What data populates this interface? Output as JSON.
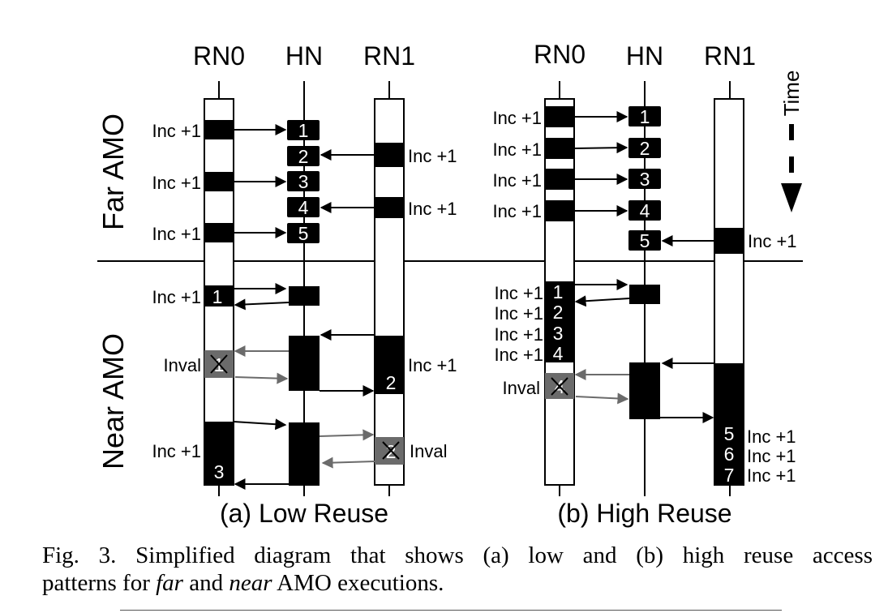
{
  "colors": {
    "ink": "#000000",
    "inval": "#6b6b6b",
    "paper": "#ffffff"
  },
  "headers": {
    "a": {
      "rn0": "RN0",
      "hn": "HN",
      "rn1": "RN1"
    },
    "b": {
      "rn0": "RN0",
      "hn": "HN",
      "rn1": "RN1"
    }
  },
  "sections": {
    "far": "Far AMO",
    "near": "Near AMO"
  },
  "time_label": "Time",
  "labels": {
    "inc": "Inc +1",
    "inval": "Inval"
  },
  "nums": {
    "n1": "1",
    "n2": "2",
    "n3": "3",
    "n4": "4",
    "n5": "5",
    "n6": "6",
    "n7": "7"
  },
  "subfigs": {
    "a": "(a) Low Reuse",
    "b": "(b) High Reuse"
  },
  "caption": {
    "line1": "Fig. 3.  Simplified diagram that shows (a) low and (b) high reuse access",
    "pre": "patterns for ",
    "far": "far",
    "mid": " and ",
    "near": "near",
    "post": " AMO executions."
  }
}
